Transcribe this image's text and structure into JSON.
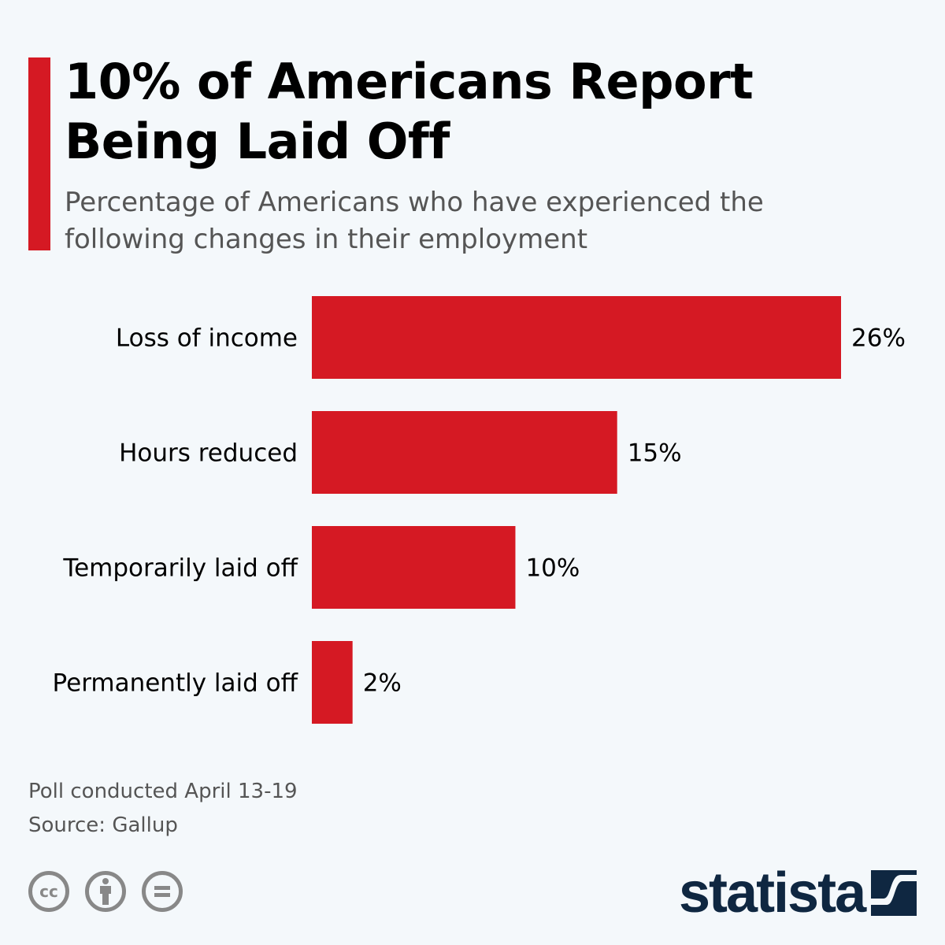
{
  "header": {
    "title": "10% of Americans Report Being Laid Off",
    "subtitle": "Percentage of Americans who have experienced the following changes in their employment"
  },
  "chart_data": {
    "type": "bar",
    "orientation": "horizontal",
    "categories": [
      "Loss of income",
      "Hours reduced",
      "Temporarily laid off",
      "Permanently laid off"
    ],
    "values": [
      26,
      15,
      10,
      2
    ],
    "value_labels": [
      "26%",
      "15%",
      "10%",
      "2%"
    ],
    "unit": "%",
    "xlim": [
      0,
      26
    ],
    "grid": false,
    "bar_color": "#d51923"
  },
  "footer": {
    "note": "Poll conducted April 13-19",
    "source": "Source: Gallup",
    "license_icons": [
      "creative-commons-icon",
      "attribution-icon",
      "no-derivatives-icon"
    ],
    "brand": "statista",
    "brand_color": "#0f2741"
  }
}
